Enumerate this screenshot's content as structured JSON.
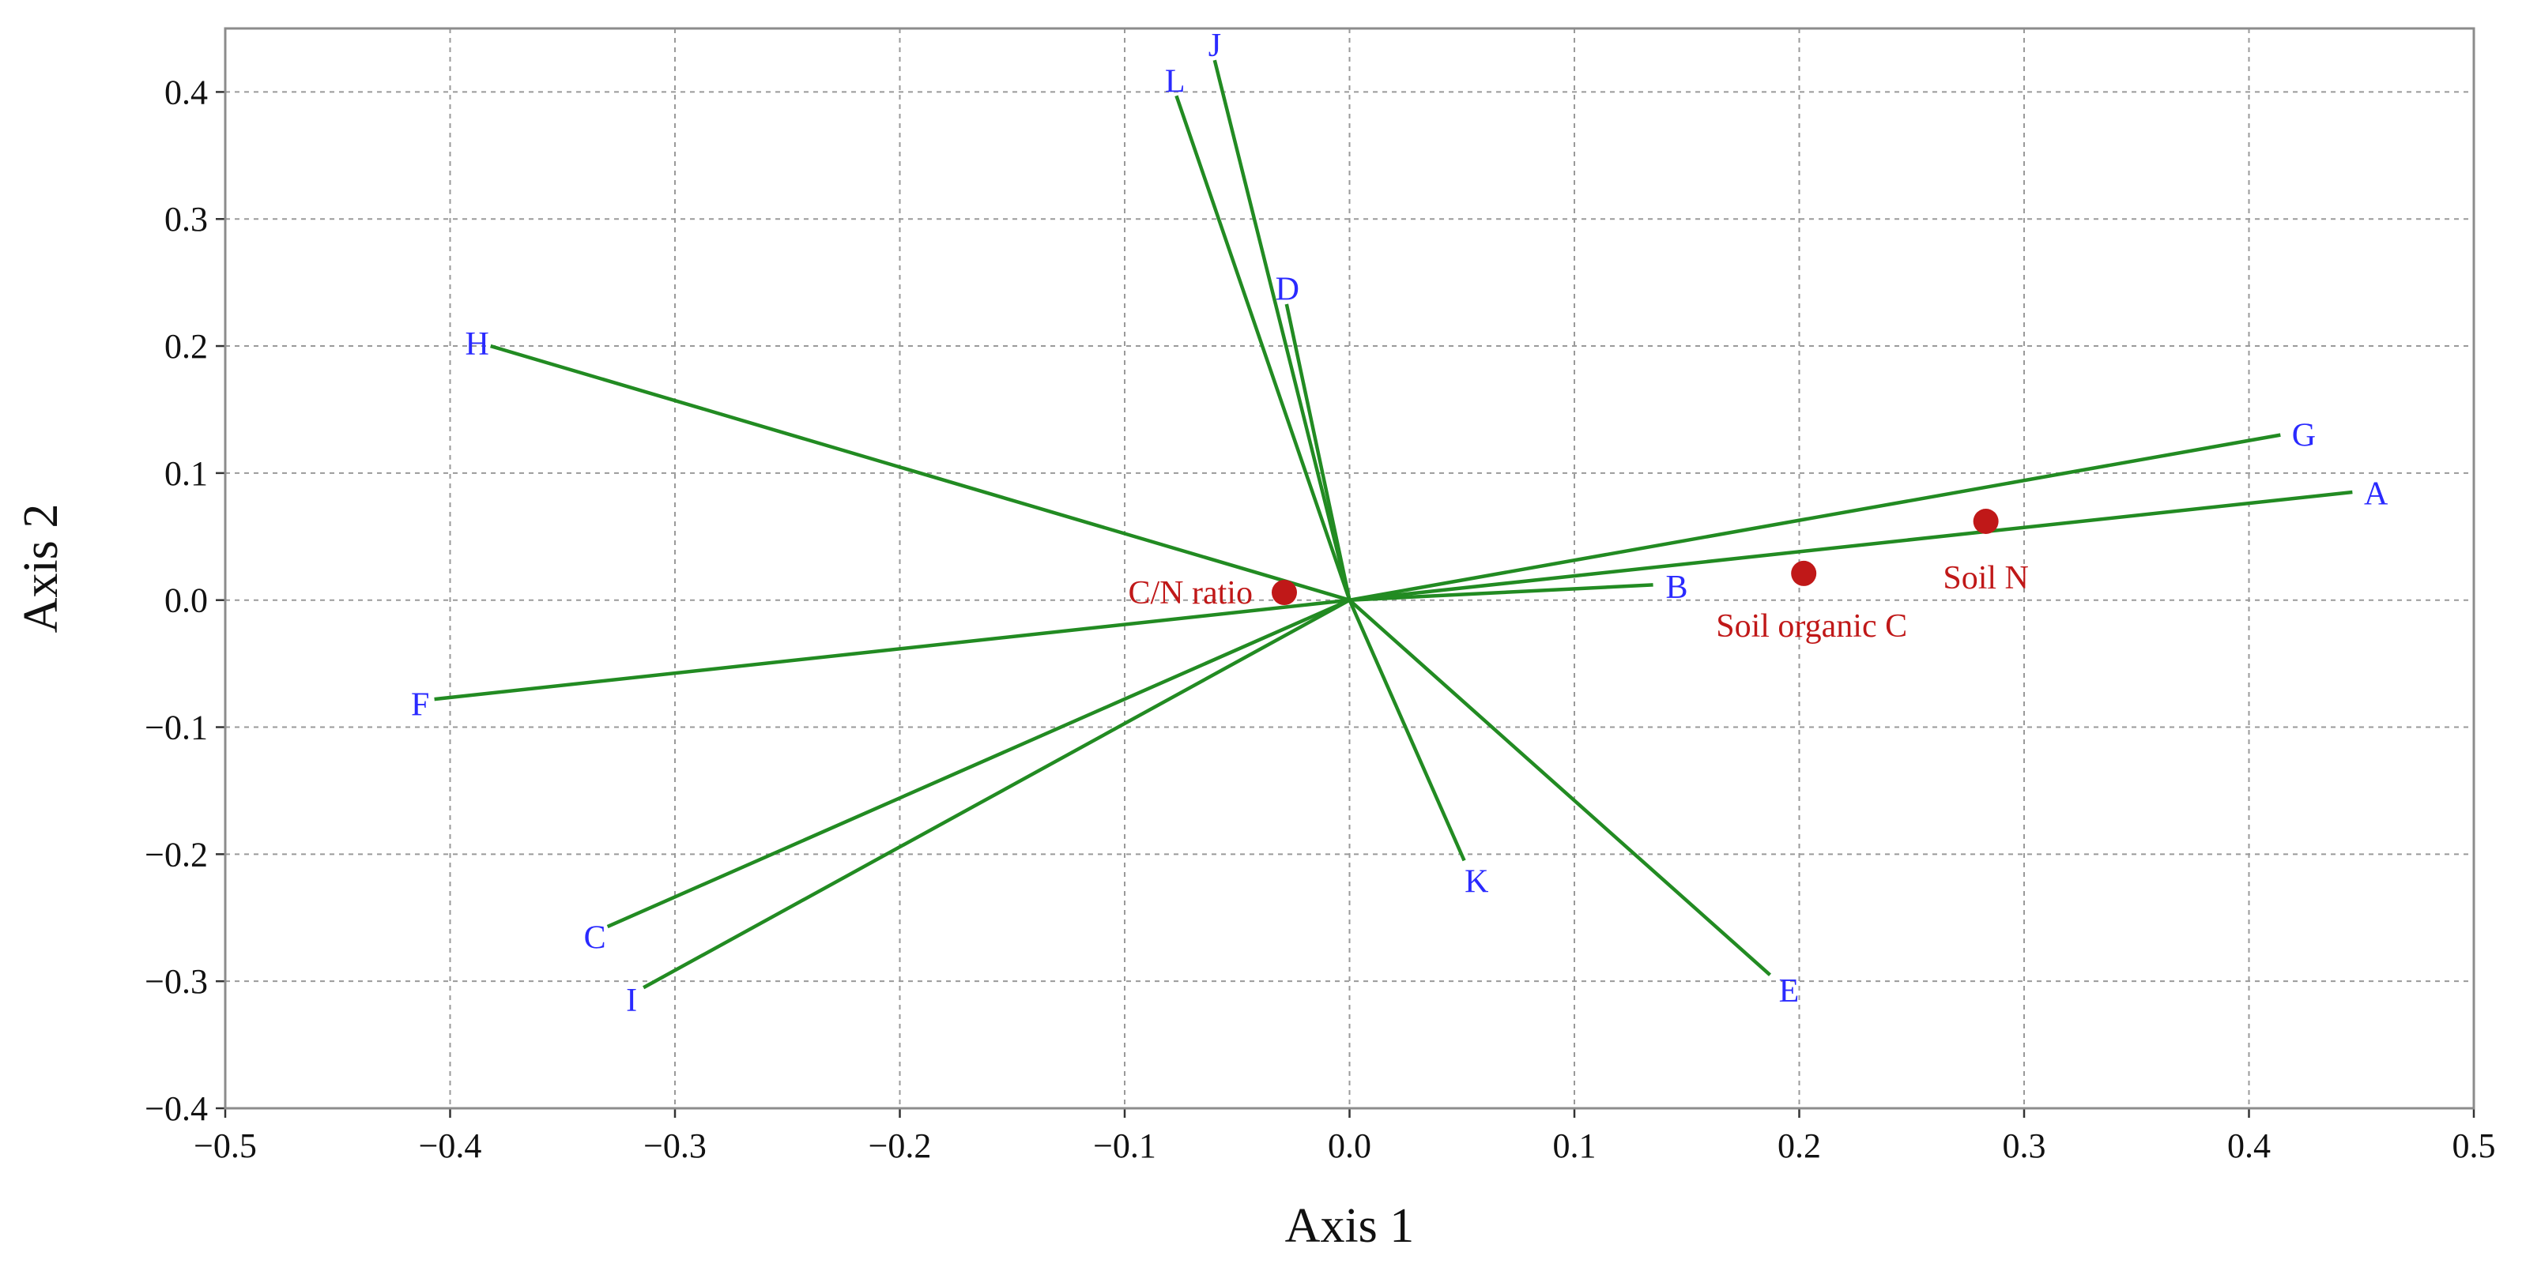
{
  "chart_data": {
    "type": "scatter",
    "title": "",
    "xlabel": "Axis 1",
    "ylabel": "Axis 2",
    "xlim": [
      -0.5,
      0.5
    ],
    "ylim": [
      -0.4,
      0.45
    ],
    "x_ticks": [
      -0.5,
      -0.4,
      -0.3,
      -0.2,
      -0.1,
      0.0,
      0.1,
      0.2,
      0.3,
      0.4,
      0.5
    ],
    "x_tick_labels": [
      "−0.5",
      "−0.4",
      "−0.3",
      "−0.2",
      "−0.1",
      "0.0",
      "0.1",
      "0.2",
      "0.3",
      "0.4",
      "0.5"
    ],
    "y_ticks": [
      0.4,
      0.3,
      0.2,
      0.1,
      0.0,
      -0.1,
      -0.2,
      -0.3,
      -0.4
    ],
    "y_tick_labels": [
      "0.4",
      "0.3",
      "0.2",
      "0.1",
      "0.0",
      "−0.1",
      "−0.2",
      "−0.3",
      "−0.4"
    ],
    "grid": true,
    "vectors": [
      {
        "label": "A",
        "x": 0.446,
        "y": 0.085
      },
      {
        "label": "B",
        "x": 0.135,
        "y": 0.012
      },
      {
        "label": "C",
        "x": -0.33,
        "y": -0.257
      },
      {
        "label": "D",
        "x": -0.028,
        "y": 0.233
      },
      {
        "label": "E",
        "x": 0.187,
        "y": -0.295
      },
      {
        "label": "F",
        "x": -0.407,
        "y": -0.078
      },
      {
        "label": "G",
        "x": 0.414,
        "y": 0.13
      },
      {
        "label": "H",
        "x": -0.382,
        "y": 0.2
      },
      {
        "label": "I",
        "x": -0.314,
        "y": -0.305
      },
      {
        "label": "J",
        "x": -0.06,
        "y": 0.425
      },
      {
        "label": "K",
        "x": 0.051,
        "y": -0.205
      },
      {
        "label": "L",
        "x": -0.077,
        "y": 0.397
      }
    ],
    "points": [
      {
        "label": "C/N ratio",
        "x": -0.029,
        "y": 0.006
      },
      {
        "label": "Soil organic C",
        "x": 0.202,
        "y": 0.021
      },
      {
        "label": "Soil N",
        "x": 0.283,
        "y": 0.062
      }
    ],
    "colors": {
      "vectors": "#228b22",
      "vector_labels": "#2a2aff",
      "points": "#c01818",
      "grid": "#9a9a9a"
    }
  }
}
